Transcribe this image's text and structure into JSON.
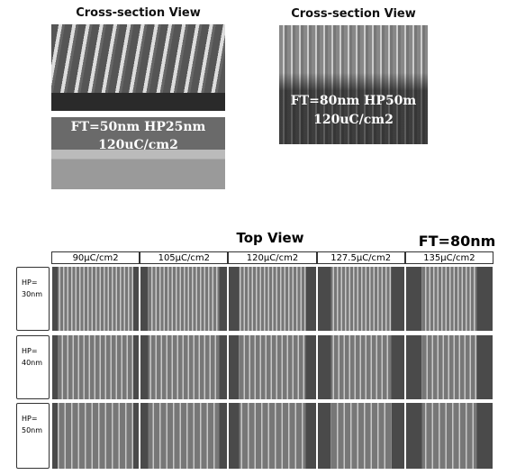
{
  "cross_section_left": {
    "title": "Cross-section View",
    "label_line1": "FT=50nm  HP25nm",
    "label_line2": "120uC/cm2"
  },
  "cross_section_right": {
    "title": "Cross-section View",
    "label_line1": "FT=80nm  HP50m",
    "label_line2": "120uC/cm2"
  },
  "top_view": {
    "title": "Top View",
    "film_thickness": "FT=80nm",
    "doses": [
      "90μC/cm2",
      "105μC/cm2",
      "120μC/cm2",
      "127.5μC/cm2",
      "135μC/cm2"
    ],
    "rows": [
      {
        "label_line1": "HP=",
        "label_line2": "30nm"
      },
      {
        "label_line1": "HP=",
        "label_line2": "40nm"
      },
      {
        "label_line1": "HP=",
        "label_line2": "50nm"
      }
    ]
  }
}
